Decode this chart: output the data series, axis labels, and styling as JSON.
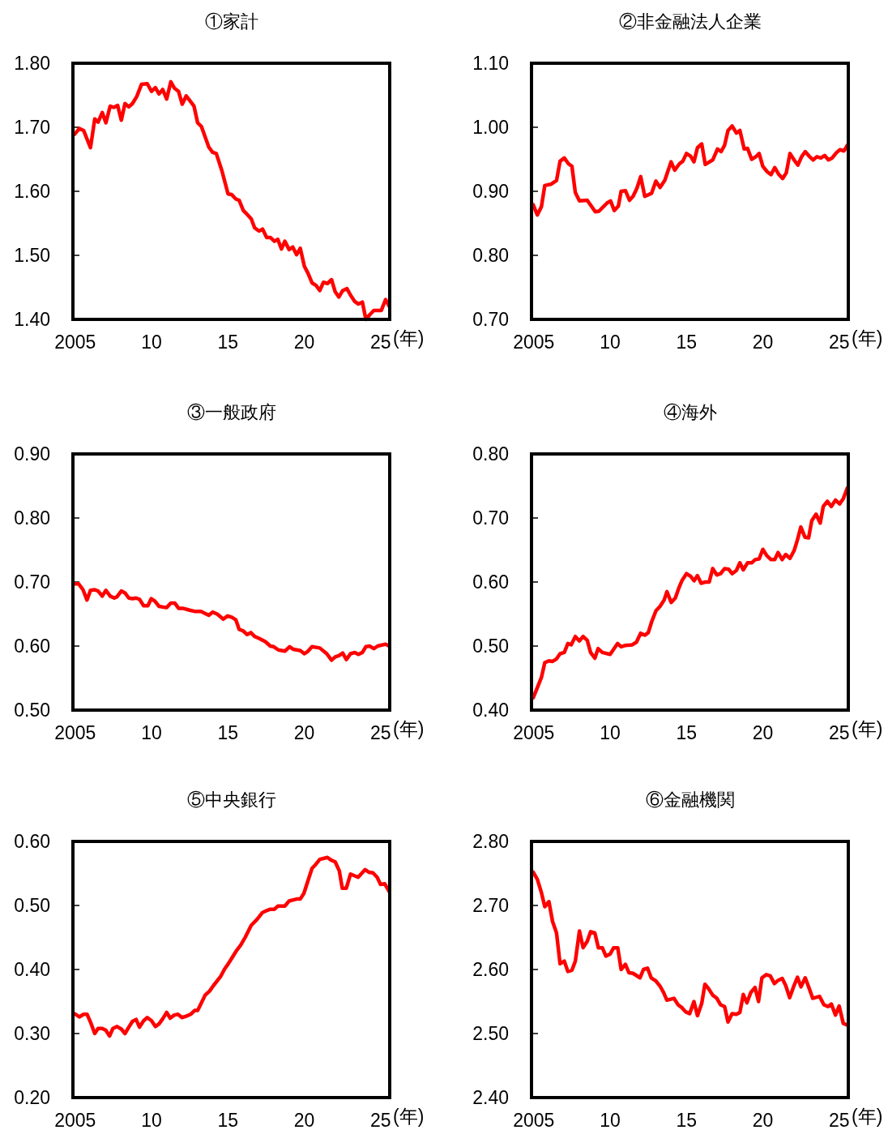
{
  "chart_data": [
    {
      "type": "line",
      "title": "①家計",
      "xlabel": "(年)",
      "color": "#ff0000",
      "xlim": [
        2004.85,
        2025.6
      ],
      "xticks": [
        {
          "value": 2005,
          "label": "2005"
        },
        {
          "value": 2010,
          "label": "10"
        },
        {
          "value": 2015,
          "label": "15"
        },
        {
          "value": 2020,
          "label": "20"
        },
        {
          "value": 2025,
          "label": "25"
        }
      ],
      "ylim": [
        1.4,
        1.8
      ],
      "yticks": [
        {
          "value": 1.4,
          "label": "1.40"
        },
        {
          "value": 1.5,
          "label": "1.50"
        },
        {
          "value": 1.6,
          "label": "1.60"
        },
        {
          "value": 1.7,
          "label": "1.70"
        },
        {
          "value": 1.8,
          "label": "1.80"
        }
      ],
      "x": [
        2004.96,
        2005.27,
        2005.55,
        2006.0,
        2006.28,
        2006.5,
        2006.77,
        2007.01,
        2007.29,
        2007.52,
        2007.78,
        2008.02,
        2008.26,
        2008.51,
        2008.75,
        2009.03,
        2009.34,
        2009.72,
        2010.0,
        2010.25,
        2010.49,
        2010.73,
        2010.99,
        2011.26,
        2011.5,
        2011.77,
        2012.01,
        2012.27,
        2012.56,
        2012.78,
        2013.02,
        2013.27,
        2013.75,
        2014.0,
        2014.24,
        2014.61,
        2015.01,
        2015.25,
        2015.52,
        2015.74,
        2016.01,
        2016.26,
        2016.53,
        2016.75,
        2017.04,
        2017.27,
        2017.54,
        2017.78,
        2018.05,
        2018.27,
        2018.51,
        2018.73,
        2019.01,
        2019.25,
        2019.5,
        2019.74,
        2020.01,
        2020.25,
        2020.51,
        2020.78,
        2021.02,
        2021.26,
        2021.52,
        2021.79,
        2022.03,
        2022.27,
        2022.52,
        2022.8,
        2023.03,
        2023.31,
        2023.55,
        2023.81,
        2024.04,
        2024.28,
        2024.56,
        2025.05,
        2025.33,
        2025.58
      ],
      "values": [
        1.689,
        1.698,
        1.695,
        1.668,
        1.713,
        1.708,
        1.723,
        1.707,
        1.733,
        1.731,
        1.734,
        1.711,
        1.737,
        1.732,
        1.737,
        1.748,
        1.767,
        1.768,
        1.756,
        1.762,
        1.752,
        1.759,
        1.744,
        1.771,
        1.761,
        1.756,
        1.736,
        1.749,
        1.74,
        1.733,
        1.707,
        1.701,
        1.669,
        1.661,
        1.659,
        1.632,
        1.596,
        1.595,
        1.588,
        1.586,
        1.57,
        1.564,
        1.557,
        1.543,
        1.538,
        1.541,
        1.528,
        1.528,
        1.522,
        1.525,
        1.51,
        1.522,
        1.509,
        1.513,
        1.501,
        1.511,
        1.483,
        1.472,
        1.457,
        1.453,
        1.445,
        1.458,
        1.456,
        1.462,
        1.443,
        1.435,
        1.445,
        1.448,
        1.438,
        1.428,
        1.424,
        1.427,
        1.4,
        1.407,
        1.414,
        1.414,
        1.431,
        1.42
      ]
    },
    {
      "type": "line",
      "title": "②非金融法人企業",
      "xlabel": "(年)",
      "color": "#ff0000",
      "xlim": [
        2004.85,
        2025.6
      ],
      "xticks": [
        {
          "value": 2005,
          "label": "2005"
        },
        {
          "value": 2010,
          "label": "10"
        },
        {
          "value": 2015,
          "label": "15"
        },
        {
          "value": 2020,
          "label": "20"
        },
        {
          "value": 2025,
          "label": "25"
        }
      ],
      "ylim": [
        0.7,
        1.1
      ],
      "yticks": [
        {
          "value": 0.7,
          "label": "0.70"
        },
        {
          "value": 0.8,
          "label": "0.80"
        },
        {
          "value": 0.9,
          "label": "0.90"
        },
        {
          "value": 1.0,
          "label": "1.00"
        },
        {
          "value": 1.1,
          "label": "1.10"
        }
      ],
      "x": [
        2004.96,
        2005.23,
        2005.5,
        2005.72,
        2006.12,
        2006.49,
        2006.72,
        2007.0,
        2007.27,
        2007.5,
        2007.72,
        2007.99,
        2008.5,
        2009.03,
        2009.27,
        2009.81,
        2010.03,
        2010.27,
        2010.54,
        2010.72,
        2011.0,
        2011.27,
        2011.5,
        2011.76,
        2012.0,
        2012.27,
        2012.72,
        2013.0,
        2013.27,
        2013.58,
        2013.99,
        2014.23,
        2014.54,
        2014.76,
        2015.0,
        2015.27,
        2015.49,
        2015.72,
        2016.0,
        2016.23,
        2016.72,
        2017.03,
        2017.27,
        2017.5,
        2017.72,
        2017.99,
        2018.27,
        2018.5,
        2018.78,
        2019.0,
        2019.27,
        2019.54,
        2019.76,
        2020.0,
        2020.27,
        2020.54,
        2020.78,
        2021.03,
        2021.3,
        2021.54,
        2021.78,
        2022.05,
        2022.3,
        2022.54,
        2022.78,
        2023.03,
        2023.3,
        2023.54,
        2023.81,
        2024.05,
        2024.3,
        2024.54,
        2024.81,
        2025.05,
        2025.32,
        2025.54
      ],
      "values": [
        0.879,
        0.863,
        0.876,
        0.909,
        0.911,
        0.917,
        0.947,
        0.952,
        0.943,
        0.939,
        0.898,
        0.885,
        0.886,
        0.868,
        0.869,
        0.882,
        0.885,
        0.87,
        0.877,
        0.9,
        0.901,
        0.886,
        0.892,
        0.905,
        0.923,
        0.892,
        0.897,
        0.916,
        0.906,
        0.917,
        0.946,
        0.933,
        0.943,
        0.947,
        0.959,
        0.955,
        0.946,
        0.968,
        0.974,
        0.942,
        0.949,
        0.966,
        0.962,
        0.972,
        0.995,
        1.002,
        0.991,
        0.995,
        0.966,
        0.967,
        0.95,
        0.954,
        0.959,
        0.939,
        0.931,
        0.926,
        0.937,
        0.927,
        0.92,
        0.929,
        0.959,
        0.949,
        0.941,
        0.954,
        0.962,
        0.955,
        0.949,
        0.954,
        0.952,
        0.956,
        0.949,
        0.952,
        0.96,
        0.965,
        0.963,
        0.972
      ]
    },
    {
      "type": "line",
      "title": "③一般政府",
      "xlabel": "(年)",
      "color": "#ff0000",
      "xlim": [
        2004.85,
        2025.6
      ],
      "xticks": [
        {
          "value": 2005,
          "label": "2005"
        },
        {
          "value": 2010,
          "label": "10"
        },
        {
          "value": 2015,
          "label": "15"
        },
        {
          "value": 2020,
          "label": "20"
        },
        {
          "value": 2025,
          "label": "25"
        }
      ],
      "ylim": [
        0.5,
        0.9
      ],
      "yticks": [
        {
          "value": 0.5,
          "label": "0.50"
        },
        {
          "value": 0.6,
          "label": "0.60"
        },
        {
          "value": 0.7,
          "label": "0.70"
        },
        {
          "value": 0.8,
          "label": "0.80"
        },
        {
          "value": 0.9,
          "label": "0.90"
        }
      ],
      "x": [
        2004.96,
        2005.23,
        2005.51,
        2005.77,
        2006.0,
        2006.28,
        2006.5,
        2006.77,
        2007.01,
        2007.29,
        2007.56,
        2007.74,
        2008.02,
        2008.26,
        2008.51,
        2008.75,
        2008.99,
        2009.21,
        2009.48,
        2009.76,
        2009.98,
        2010.22,
        2010.49,
        2010.99,
        2011.26,
        2011.53,
        2011.77,
        2012.05,
        2012.5,
        2012.87,
        2013.24,
        2013.75,
        2014.0,
        2014.3,
        2014.7,
        2014.98,
        2015.25,
        2015.52,
        2015.74,
        2015.98,
        2016.26,
        2016.5,
        2016.75,
        2017.04,
        2017.45,
        2017.78,
        2018.0,
        2018.31,
        2018.73,
        2019.04,
        2019.28,
        2019.74,
        2020.01,
        2020.25,
        2020.51,
        2021.02,
        2021.48,
        2021.79,
        2022.03,
        2022.27,
        2022.52,
        2022.76,
        2023.03,
        2023.31,
        2023.55,
        2023.81,
        2024.04,
        2024.28,
        2024.56,
        2024.81,
        2025.33,
        2025.56
      ],
      "values": [
        0.697,
        0.697,
        0.688,
        0.672,
        0.687,
        0.688,
        0.686,
        0.678,
        0.687,
        0.678,
        0.675,
        0.677,
        0.686,
        0.683,
        0.675,
        0.674,
        0.675,
        0.673,
        0.663,
        0.663,
        0.674,
        0.67,
        0.662,
        0.66,
        0.667,
        0.667,
        0.659,
        0.659,
        0.656,
        0.654,
        0.654,
        0.648,
        0.653,
        0.65,
        0.642,
        0.647,
        0.645,
        0.641,
        0.626,
        0.624,
        0.618,
        0.621,
        0.615,
        0.612,
        0.607,
        0.6,
        0.599,
        0.594,
        0.592,
        0.599,
        0.595,
        0.593,
        0.588,
        0.592,
        0.599,
        0.597,
        0.588,
        0.578,
        0.583,
        0.585,
        0.589,
        0.579,
        0.588,
        0.59,
        0.587,
        0.59,
        0.599,
        0.6,
        0.596,
        0.6,
        0.603,
        0.6
      ]
    },
    {
      "type": "line",
      "title": "④海外",
      "xlabel": "(年)",
      "color": "#ff0000",
      "xlim": [
        2004.85,
        2025.6
      ],
      "xticks": [
        {
          "value": 2005,
          "label": "2005"
        },
        {
          "value": 2010,
          "label": "10"
        },
        {
          "value": 2015,
          "label": "15"
        },
        {
          "value": 2020,
          "label": "20"
        },
        {
          "value": 2025,
          "label": "25"
        }
      ],
      "ylim": [
        0.4,
        0.8
      ],
      "yticks": [
        {
          "value": 0.4,
          "label": "0.40"
        },
        {
          "value": 0.5,
          "label": "0.50"
        },
        {
          "value": 0.6,
          "label": "0.60"
        },
        {
          "value": 0.7,
          "label": "0.70"
        },
        {
          "value": 0.8,
          "label": "0.80"
        }
      ],
      "x": [
        2004.96,
        2005.23,
        2005.5,
        2005.72,
        2005.99,
        2006.23,
        2006.49,
        2006.72,
        2007.0,
        2007.23,
        2007.45,
        2007.72,
        2007.99,
        2008.23,
        2008.5,
        2008.72,
        2009.0,
        2009.21,
        2009.49,
        2010.0,
        2010.49,
        2010.72,
        2011.0,
        2011.45,
        2011.72,
        2012.0,
        2012.27,
        2012.5,
        2012.72,
        2013.0,
        2013.27,
        2013.54,
        2013.72,
        2014.0,
        2014.27,
        2014.49,
        2014.72,
        2015.0,
        2015.27,
        2015.5,
        2015.72,
        2015.96,
        2016.23,
        2016.49,
        2016.72,
        2016.99,
        2017.23,
        2017.5,
        2017.76,
        2017.99,
        2018.27,
        2018.5,
        2018.72,
        2019.0,
        2019.27,
        2019.5,
        2019.76,
        2020.0,
        2020.27,
        2020.54,
        2020.78,
        2021.0,
        2021.27,
        2021.5,
        2021.78,
        2022.05,
        2022.27,
        2022.49,
        2022.76,
        2023.0,
        2023.21,
        2023.49,
        2023.76,
        2023.96,
        2024.23,
        2024.49,
        2024.76,
        2025.03,
        2025.27,
        2025.54
      ],
      "values": [
        0.419,
        0.435,
        0.451,
        0.474,
        0.477,
        0.476,
        0.48,
        0.488,
        0.49,
        0.504,
        0.502,
        0.515,
        0.508,
        0.515,
        0.509,
        0.49,
        0.481,
        0.496,
        0.49,
        0.487,
        0.504,
        0.499,
        0.501,
        0.502,
        0.506,
        0.52,
        0.517,
        0.521,
        0.538,
        0.555,
        0.562,
        0.572,
        0.585,
        0.568,
        0.575,
        0.59,
        0.603,
        0.613,
        0.609,
        0.602,
        0.61,
        0.598,
        0.6,
        0.6,
        0.621,
        0.611,
        0.613,
        0.621,
        0.62,
        0.613,
        0.618,
        0.63,
        0.619,
        0.63,
        0.63,
        0.635,
        0.636,
        0.651,
        0.641,
        0.635,
        0.635,
        0.646,
        0.635,
        0.643,
        0.637,
        0.649,
        0.666,
        0.686,
        0.67,
        0.669,
        0.696,
        0.706,
        0.692,
        0.718,
        0.726,
        0.718,
        0.728,
        0.722,
        0.73,
        0.747
      ]
    },
    {
      "type": "line",
      "title": "⑤中央銀行",
      "xlabel": "(年)",
      "color": "#ff0000",
      "xlim": [
        2004.85,
        2025.6
      ],
      "xticks": [
        {
          "value": 2005,
          "label": "2005"
        },
        {
          "value": 2010,
          "label": "10"
        },
        {
          "value": 2015,
          "label": "15"
        },
        {
          "value": 2020,
          "label": "20"
        },
        {
          "value": 2025,
          "label": "25"
        }
      ],
      "ylim": [
        0.2,
        0.6
      ],
      "yticks": [
        {
          "value": 0.2,
          "label": "0.20"
        },
        {
          "value": 0.3,
          "label": "0.30"
        },
        {
          "value": 0.4,
          "label": "0.40"
        },
        {
          "value": 0.5,
          "label": "0.50"
        },
        {
          "value": 0.6,
          "label": "0.60"
        }
      ],
      "x": [
        2004.96,
        2005.27,
        2005.55,
        2005.78,
        2006.0,
        2006.28,
        2006.5,
        2006.77,
        2007.01,
        2007.25,
        2007.47,
        2007.74,
        2008.02,
        2008.26,
        2008.51,
        2008.75,
        2008.99,
        2009.21,
        2009.48,
        2009.72,
        2010.0,
        2010.25,
        2010.49,
        2010.73,
        2010.99,
        2011.22,
        2011.5,
        2011.73,
        2011.99,
        2012.27,
        2012.56,
        2012.82,
        2013.02,
        2013.27,
        2013.51,
        2013.79,
        2014.06,
        2014.52,
        2014.79,
        2015.03,
        2015.29,
        2015.58,
        2015.84,
        2016.13,
        2016.53,
        2016.9,
        2017.27,
        2017.54,
        2017.78,
        2018.05,
        2018.27,
        2018.73,
        2019.01,
        2019.5,
        2019.74,
        2019.98,
        2020.25,
        2020.51,
        2020.75,
        2021.02,
        2021.52,
        2021.75,
        2022.03,
        2022.3,
        2022.49,
        2022.76,
        2023.03,
        2023.53,
        2023.99,
        2024.23,
        2024.5,
        2024.78,
        2025.0,
        2025.27,
        2025.56
      ],
      "values": [
        0.331,
        0.326,
        0.33,
        0.33,
        0.318,
        0.3,
        0.308,
        0.308,
        0.305,
        0.296,
        0.308,
        0.311,
        0.307,
        0.3,
        0.31,
        0.319,
        0.322,
        0.31,
        0.32,
        0.325,
        0.32,
        0.311,
        0.315,
        0.323,
        0.333,
        0.324,
        0.329,
        0.33,
        0.325,
        0.327,
        0.33,
        0.336,
        0.336,
        0.348,
        0.36,
        0.366,
        0.375,
        0.389,
        0.401,
        0.409,
        0.419,
        0.43,
        0.438,
        0.45,
        0.469,
        0.478,
        0.489,
        0.492,
        0.494,
        0.494,
        0.499,
        0.499,
        0.507,
        0.51,
        0.51,
        0.519,
        0.539,
        0.558,
        0.564,
        0.572,
        0.575,
        0.571,
        0.568,
        0.554,
        0.527,
        0.527,
        0.549,
        0.544,
        0.556,
        0.552,
        0.551,
        0.544,
        0.533,
        0.534,
        0.522
      ]
    },
    {
      "type": "line",
      "title": "⑥金融機関",
      "xlabel": "(年)",
      "color": "#ff0000",
      "xlim": [
        2004.85,
        2025.6
      ],
      "xticks": [
        {
          "value": 2005,
          "label": "2005"
        },
        {
          "value": 2010,
          "label": "10"
        },
        {
          "value": 2015,
          "label": "15"
        },
        {
          "value": 2020,
          "label": "20"
        },
        {
          "value": 2025,
          "label": "25"
        }
      ],
      "ylim": [
        2.4,
        2.8
      ],
      "yticks": [
        {
          "value": 2.4,
          "label": "2.40"
        },
        {
          "value": 2.5,
          "label": "2.50"
        },
        {
          "value": 2.6,
          "label": "2.60"
        },
        {
          "value": 2.7,
          "label": "2.70"
        },
        {
          "value": 2.8,
          "label": "2.80"
        }
      ],
      "x": [
        2004.96,
        2005.23,
        2005.5,
        2005.72,
        2005.99,
        2006.23,
        2006.49,
        2006.72,
        2007.0,
        2007.23,
        2007.5,
        2007.72,
        2007.99,
        2008.23,
        2008.5,
        2008.72,
        2009.0,
        2009.23,
        2009.49,
        2009.72,
        2010.0,
        2010.23,
        2010.5,
        2010.72,
        2011.0,
        2011.23,
        2011.5,
        2011.96,
        2012.18,
        2012.45,
        2012.69,
        2013.0,
        2013.27,
        2013.5,
        2013.72,
        2014.18,
        2014.45,
        2014.72,
        2014.94,
        2015.21,
        2015.49,
        2015.72,
        2016.0,
        2016.21,
        2016.45,
        2016.72,
        2016.99,
        2017.23,
        2017.5,
        2017.72,
        2017.99,
        2018.27,
        2018.5,
        2018.72,
        2018.96,
        2019.21,
        2019.49,
        2019.72,
        2019.94,
        2020.23,
        2020.49,
        2020.76,
        2021.0,
        2021.27,
        2021.5,
        2021.76,
        2022.03,
        2022.27,
        2022.5,
        2022.78,
        2023.03,
        2023.27,
        2023.72,
        2024.0,
        2024.27,
        2024.49,
        2024.76,
        2025.0,
        2025.27,
        2025.54
      ],
      "values": [
        2.752,
        2.741,
        2.72,
        2.698,
        2.706,
        2.675,
        2.657,
        2.609,
        2.613,
        2.597,
        2.599,
        2.613,
        2.66,
        2.634,
        2.644,
        2.659,
        2.657,
        2.634,
        2.634,
        2.621,
        2.624,
        2.634,
        2.634,
        2.6,
        2.608,
        2.595,
        2.594,
        2.587,
        2.6,
        2.602,
        2.587,
        2.582,
        2.574,
        2.564,
        2.552,
        2.555,
        2.545,
        2.54,
        2.534,
        2.531,
        2.55,
        2.528,
        2.547,
        2.577,
        2.57,
        2.56,
        2.555,
        2.545,
        2.542,
        2.518,
        2.531,
        2.53,
        2.533,
        2.561,
        2.548,
        2.564,
        2.572,
        2.55,
        2.587,
        2.592,
        2.59,
        2.578,
        2.583,
        2.586,
        2.575,
        2.556,
        2.574,
        2.588,
        2.573,
        2.587,
        2.571,
        2.555,
        2.558,
        2.545,
        2.542,
        2.546,
        2.529,
        2.543,
        2.516,
        2.513
      ]
    }
  ]
}
